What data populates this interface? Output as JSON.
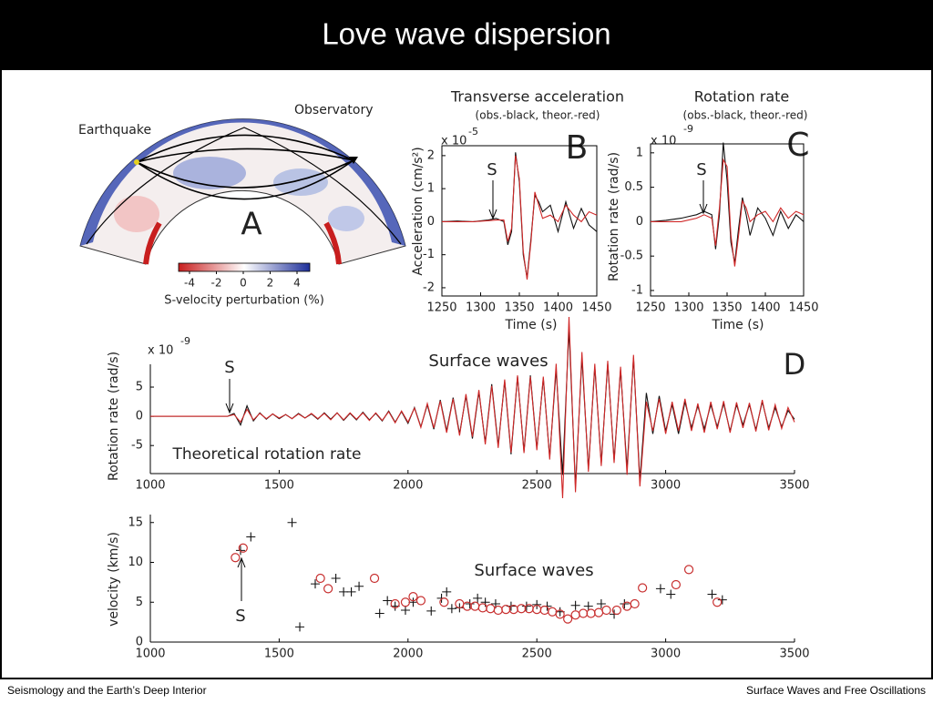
{
  "header": {
    "title": "Love wave dispersion"
  },
  "footer": {
    "left": "Seismology and the Earth’s Deep Interior",
    "right": "Surface Waves and Free Oscillations"
  },
  "panel_a": {
    "label": "A",
    "earthquake": "Earthquake",
    "observatory": "Observatory",
    "colorbar": {
      "title": "S-velocity perturbation (%)",
      "ticks": [
        -4,
        -2,
        0,
        2,
        4
      ],
      "colors": [
        "#c81e1e",
        "#ffffff",
        "#1e2f9a"
      ]
    }
  },
  "chart_data": [
    {
      "type": "line",
      "title": "Transverse acceleration",
      "subtitle": "(obs.-black, theor.-red)",
      "panel_label": "B",
      "scale_base": "x 10",
      "scale_exponent": "-5",
      "annotation": "S",
      "xlabel": "Time (s)",
      "ylabel": "Acceleration (cm/s²)",
      "xlim": [
        1250,
        1450
      ],
      "xticks": [
        1250,
        1300,
        1350,
        1400,
        1450
      ],
      "ylim": [
        -2.25,
        2.3
      ],
      "yticks": [
        -2,
        -1,
        0,
        1,
        2
      ],
      "x": [
        1250,
        1270,
        1290,
        1310,
        1320,
        1330,
        1335,
        1340,
        1345,
        1350,
        1355,
        1360,
        1365,
        1370,
        1375,
        1380,
        1390,
        1400,
        1410,
        1420,
        1430,
        1440,
        1450
      ],
      "series": [
        {
          "color": "#111111",
          "values": [
            0,
            0.02,
            0,
            0.05,
            0.1,
            0,
            -0.7,
            -0.3,
            2.1,
            1.2,
            -1.0,
            -1.7,
            -0.5,
            0.8,
            0.6,
            0.3,
            0.5,
            -0.3,
            0.6,
            -0.2,
            0.4,
            -0.1,
            -0.3
          ]
        },
        {
          "color": "#d02828",
          "values": [
            0,
            0,
            0,
            0.03,
            0.05,
            0.05,
            -0.6,
            -0.2,
            2.0,
            1.3,
            -0.9,
            -1.75,
            -0.6,
            0.9,
            0.5,
            0.1,
            0.2,
            0.0,
            0.5,
            0.2,
            0.0,
            0.3,
            0.2
          ]
        }
      ]
    },
    {
      "type": "line",
      "title": "Rotation rate",
      "subtitle": "(obs.-black, theor.-red)",
      "panel_label": "C",
      "scale_base": "x 10",
      "scale_exponent": "-9",
      "annotation": "S",
      "xlabel": "Time (s)",
      "ylabel": "Rotation rate (rad/s)",
      "xlim": [
        1250,
        1450
      ],
      "xticks": [
        1250,
        1300,
        1350,
        1400,
        1450
      ],
      "ylim": [
        -1.08,
        1.13
      ],
      "yticks": [
        -1,
        -0.5,
        0,
        0.5,
        1
      ],
      "x": [
        1250,
        1270,
        1290,
        1310,
        1320,
        1330,
        1335,
        1340,
        1345,
        1350,
        1355,
        1360,
        1365,
        1370,
        1375,
        1380,
        1390,
        1400,
        1410,
        1420,
        1430,
        1440,
        1450
      ],
      "series": [
        {
          "color": "#111111",
          "values": [
            0,
            0.02,
            0.05,
            0.1,
            0.15,
            0.1,
            -0.4,
            0.1,
            1.15,
            0.6,
            -0.3,
            -0.6,
            -0.1,
            0.35,
            0.1,
            -0.2,
            0.2,
            0.05,
            -0.2,
            0.15,
            -0.1,
            0.1,
            0
          ]
        },
        {
          "color": "#d02828",
          "values": [
            0,
            0,
            0,
            0.05,
            0.1,
            0.05,
            -0.35,
            0.2,
            0.9,
            0.8,
            -0.2,
            -0.65,
            -0.2,
            0.3,
            0.2,
            0.0,
            0.1,
            0.15,
            0.0,
            0.2,
            0.05,
            0.15,
            0.1
          ]
        }
      ]
    },
    {
      "type": "line",
      "panel_label": "D",
      "scale_base": "x 10",
      "scale_exponent": "-9",
      "annotation": "S",
      "annotation_2": "Surface waves",
      "annotation_3": "Theoretical rotation rate",
      "ylabel": "Rotation rate (rad/s)",
      "xlim": [
        1000,
        3500
      ],
      "xticks": [
        1000,
        1500,
        2000,
        2500,
        3000,
        3500
      ],
      "ylim": [
        -9.8,
        8.9
      ],
      "yticks": [
        -5,
        0,
        5
      ],
      "x": [
        1000,
        1025,
        1050,
        1075,
        1100,
        1125,
        1150,
        1175,
        1200,
        1225,
        1250,
        1275,
        1300,
        1325,
        1350,
        1375,
        1400,
        1425,
        1450,
        1475,
        1500,
        1525,
        1550,
        1575,
        1600,
        1625,
        1650,
        1675,
        1700,
        1725,
        1750,
        1775,
        1800,
        1825,
        1850,
        1875,
        1900,
        1925,
        1950,
        1975,
        2000,
        2025,
        2050,
        2075,
        2100,
        2125,
        2150,
        2175,
        2200,
        2225,
        2250,
        2275,
        2300,
        2325,
        2350,
        2375,
        2400,
        2425,
        2450,
        2475,
        2500,
        2525,
        2550,
        2575,
        2600,
        2625,
        2650,
        2675,
        2700,
        2725,
        2750,
        2775,
        2800,
        2825,
        2850,
        2875,
        2900,
        2925,
        2950,
        2975,
        3000,
        3025,
        3050,
        3075,
        3100,
        3125,
        3150,
        3175,
        3200,
        3225,
        3250,
        3275,
        3300,
        3325,
        3350,
        3375,
        3400,
        3425,
        3450,
        3475,
        3500
      ],
      "series": [
        {
          "color": "#111111",
          "values": [
            0,
            0,
            0,
            0,
            0,
            0,
            0,
            0,
            0,
            0,
            0,
            0,
            0,
            0.5,
            -1.5,
            1.8,
            -0.8,
            0.6,
            -0.5,
            0.4,
            -0.4,
            0.3,
            -0.4,
            0.5,
            -0.3,
            0.4,
            -0.5,
            0.6,
            -0.5,
            0.6,
            -0.7,
            0.5,
            -0.6,
            0.7,
            -0.6,
            0.5,
            -0.8,
            0.9,
            -1.0,
            0.8,
            -1.2,
            1.5,
            -1.8,
            2.0,
            -2.2,
            2.8,
            -2.5,
            3.2,
            -3.0,
            3.5,
            -3.8,
            4.2,
            -4.5,
            5.5,
            -5.0,
            6.0,
            -6.5,
            6.8,
            -6.0,
            7.0,
            -5.5,
            6.5,
            -7.0,
            8.0,
            -10.0,
            15.0,
            -12.0,
            10.0,
            -9.0,
            8.5,
            -8.0,
            9.0,
            -7.5,
            8.0,
            -9.0,
            10.0,
            -11.0,
            4.0,
            -3.0,
            3.5,
            -2.5,
            2.0,
            -3.0,
            2.5,
            -2.0,
            1.8,
            -2.2,
            2.0,
            -1.8,
            2.2,
            -2.5,
            2.0,
            -1.5,
            2.0,
            -2.3,
            2.5,
            -2.0,
            1.5,
            -1.8,
            1.0,
            -0.5
          ]
        },
        {
          "color": "#d02828",
          "values": [
            0,
            0,
            0,
            0,
            0,
            0,
            0,
            0,
            0,
            0,
            0,
            0,
            0,
            0.3,
            -1.0,
            1.2,
            -0.6,
            0.5,
            -0.4,
            0.4,
            -0.3,
            0.3,
            -0.4,
            0.4,
            -0.3,
            0.5,
            -0.4,
            0.5,
            -0.6,
            0.6,
            -0.6,
            0.6,
            -0.5,
            0.6,
            -0.7,
            0.6,
            -0.7,
            0.8,
            -1.1,
            0.9,
            -1.0,
            1.4,
            -1.9,
            2.2,
            -2.0,
            2.6,
            -2.8,
            3.0,
            -3.3,
            3.8,
            -3.5,
            4.5,
            -4.8,
            5.2,
            -5.4,
            6.3,
            -6.2,
            7.0,
            -6.3,
            6.8,
            -5.8,
            6.8,
            -7.4,
            9.0,
            -14.0,
            17.0,
            -13.0,
            11.0,
            -9.5,
            9.0,
            -8.5,
            9.5,
            -8.0,
            8.5,
            -10.0,
            10.5,
            -12.0,
            2.5,
            -2.5,
            3.0,
            -3.0,
            2.5,
            -2.5,
            3.0,
            -2.5,
            2.2,
            -2.8,
            2.5,
            -2.2,
            2.6,
            -2.8,
            2.4,
            -2.0,
            2.3,
            -2.6,
            2.8,
            -2.4,
            2.0,
            -2.1,
            1.5,
            -1.0
          ]
        }
      ]
    },
    {
      "type": "scatter",
      "annotation": "S",
      "annotation_2": "Surface waves",
      "ylabel": "velocity (km/s)",
      "xlim": [
        1000,
        3500
      ],
      "xticks": [
        1000,
        1500,
        2000,
        2500,
        3000,
        3500
      ],
      "ylim": [
        0,
        16
      ],
      "yticks": [
        0,
        5,
        10,
        15
      ],
      "series": [
        {
          "color": "#111111",
          "marker": "plus",
          "x": [
            1350,
            1390,
            1550,
            1580,
            1640,
            1720,
            1750,
            1780,
            1810,
            1890,
            1920,
            1950,
            1990,
            2020,
            2090,
            2130,
            2150,
            2170,
            2200,
            2240,
            2270,
            2300,
            2340,
            2400,
            2460,
            2500,
            2540,
            2590,
            2650,
            2700,
            2750,
            2800,
            2840,
            2980,
            3020,
            3180,
            3220
          ],
          "values": [
            11.5,
            13.2,
            15,
            1.9,
            7.3,
            8,
            6.3,
            6.3,
            7,
            3.6,
            5.2,
            4.5,
            4,
            5,
            3.9,
            5.5,
            6.3,
            4.2,
            4.3,
            4.8,
            5.5,
            5,
            4.8,
            4.5,
            4.5,
            4.7,
            4.5,
            3.8,
            4.6,
            4.5,
            4.8,
            3.5,
            4.8,
            6.7,
            6,
            6,
            5.3
          ]
        },
        {
          "color": "#c83030",
          "marker": "circle",
          "x": [
            1330,
            1360,
            1660,
            1690,
            1870,
            1950,
            1990,
            2020,
            2050,
            2140,
            2200,
            2230,
            2260,
            2290,
            2320,
            2350,
            2380,
            2410,
            2440,
            2470,
            2500,
            2530,
            2560,
            2590,
            2620,
            2650,
            2680,
            2710,
            2740,
            2770,
            2810,
            2850,
            2880,
            2910,
            3040,
            3090,
            3200
          ],
          "values": [
            10.6,
            11.8,
            8,
            6.7,
            8,
            4.8,
            5,
            5.7,
            5.2,
            5,
            4.8,
            4.5,
            4.5,
            4.3,
            4.2,
            4,
            4.1,
            4.1,
            4.2,
            4.2,
            4.1,
            4,
            3.8,
            3.5,
            2.9,
            3.4,
            3.6,
            3.6,
            3.7,
            4,
            4,
            4.5,
            4.8,
            6.8,
            7.2,
            9.1,
            5
          ]
        }
      ]
    }
  ]
}
